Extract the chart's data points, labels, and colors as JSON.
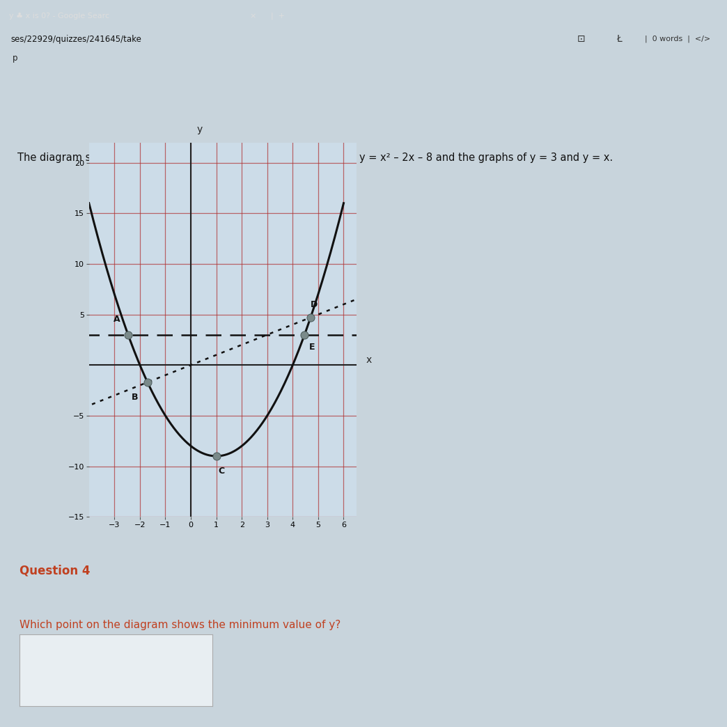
{
  "title_text": "The diagram shows the graph of the machine’s quadratic function y = x² – 2x – 8 and the graphs of y = 3 and y = x.",
  "browser_tab_text": "y ♣ x is 0? - Google Searc",
  "url_bar_text": "ses/22929/quizzes/241645/take",
  "p_label": "p",
  "words_label": "0 words",
  "right_bar_text": "</>",
  "question_label": "Question 4",
  "question_text": "Which point on the diagram shows the minimum value of y?",
  "xlim": [
    -4,
    6.5
  ],
  "ylim": [
    -15,
    22
  ],
  "xtick_vals": [
    -3,
    -2,
    -1,
    0,
    1,
    2,
    3,
    4,
    5,
    6
  ],
  "ytick_vals": [
    -15,
    -10,
    -5,
    5,
    10,
    15,
    20
  ],
  "grid_color": "#b03030",
  "page_bg": "#c8d4dc",
  "graph_bg": "#ccdce8",
  "parabola_color": "#111111",
  "line_color": "#111111",
  "point_color": "#7a8a8a",
  "point_A": [
    -2.46,
    3.0
  ],
  "point_B": [
    -1.7,
    -1.7
  ],
  "point_C": [
    1.0,
    -9.0
  ],
  "point_D": [
    4.7,
    4.7
  ],
  "point_E": [
    4.46,
    3.0
  ],
  "browser_bar_bg": "#a52020",
  "url_strip_bg": "#c8a8a8",
  "content_bg": "#c8d4dc",
  "question_text_color": "#c04020",
  "title_color": "#111111"
}
